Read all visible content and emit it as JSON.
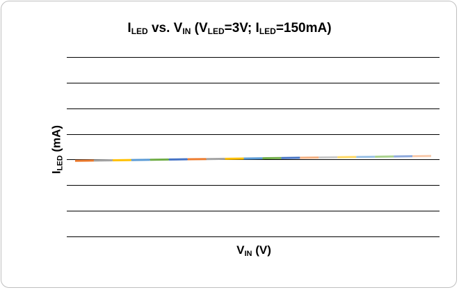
{
  "chart_data": {
    "type": "line",
    "title": {
      "main": "I",
      "s1": "LED",
      "t1": " vs. V",
      "s2": "IN",
      "t2": " (V",
      "s3": "LED",
      "t3": "=3V; I",
      "s4": "LED",
      "t4": "=150mA)"
    },
    "ylabel": {
      "main": "I",
      "sub": "LED",
      "rest": " (mA)"
    },
    "xlabel": {
      "main": "V",
      "sub": "IN",
      "rest": " (V)"
    },
    "grid": true,
    "legend": "none",
    "ylim": [
      0,
      7
    ],
    "x": [
      1,
      2,
      3,
      4,
      5,
      6,
      7,
      8,
      9,
      10,
      11,
      12,
      13,
      14,
      15,
      16,
      17,
      18,
      19,
      20
    ],
    "y": [
      2.95,
      2.96,
      2.97,
      2.98,
      2.99,
      3.0,
      3.01,
      3.02,
      3.03,
      3.04,
      3.05,
      3.06,
      3.07,
      3.08,
      3.09,
      3.1,
      3.11,
      3.12,
      3.13,
      3.14
    ],
    "segment_colors": [
      "#ED7D31",
      "#A5A5A5",
      "#FFC000",
      "#5B9BD5",
      "#70AD47",
      "#4472C4",
      "#ED7D31",
      "#A5A5A5",
      "#FFC000",
      "#5B9BD5",
      "#70AD47",
      "#4472C4",
      "#F4B183",
      "#C9C9C9",
      "#FFD966",
      "#9DC3E6",
      "#A9D18E",
      "#8FAADC",
      "#F8CBAD"
    ]
  }
}
